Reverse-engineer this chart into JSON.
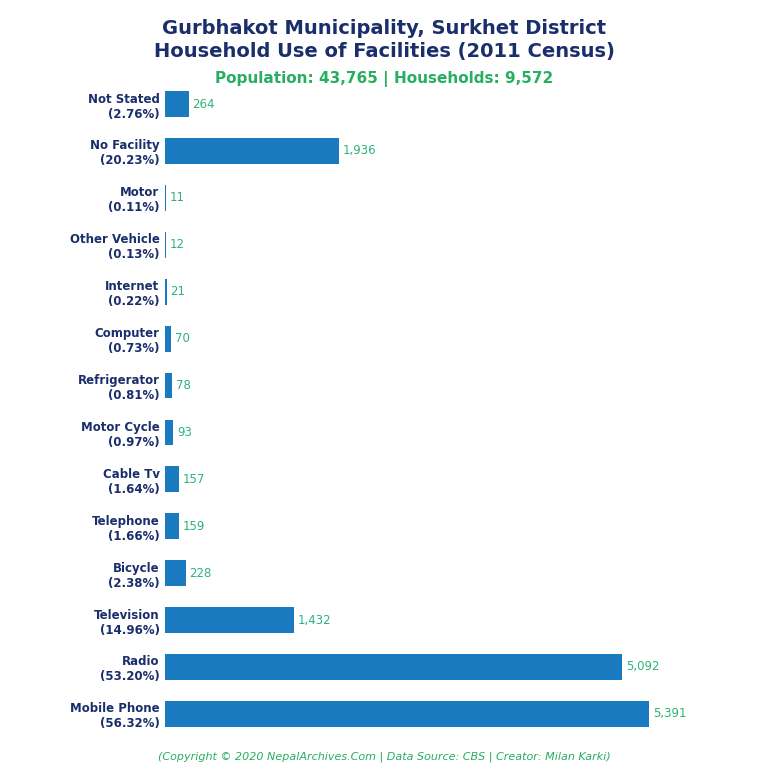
{
  "title_line1": "Gurbhakot Municipality, Surkhet District",
  "title_line2": "Household Use of Facilities (2011 Census)",
  "subtitle": "Population: 43,765 | Households: 9,572",
  "footer": "(Copyright © 2020 NepalArchives.Com | Data Source: CBS | Creator: Milan Karki)",
  "categories": [
    "Not Stated\n(2.76%)",
    "No Facility\n(20.23%)",
    "Motor\n(0.11%)",
    "Other Vehicle\n(0.13%)",
    "Internet\n(0.22%)",
    "Computer\n(0.73%)",
    "Refrigerator\n(0.81%)",
    "Motor Cycle\n(0.97%)",
    "Cable Tv\n(1.64%)",
    "Telephone\n(1.66%)",
    "Bicycle\n(2.38%)",
    "Television\n(14.96%)",
    "Radio\n(53.20%)",
    "Mobile Phone\n(56.32%)"
  ],
  "values": [
    264,
    1936,
    11,
    12,
    21,
    70,
    78,
    93,
    157,
    159,
    228,
    1432,
    5092,
    5391
  ],
  "bar_color": "#1a7abf",
  "value_color": "#2db37a",
  "title_color": "#1a2e6b",
  "subtitle_color": "#27ae60",
  "footer_color": "#27ae60",
  "background_color": "#ffffff",
  "xlim": [
    0,
    6200
  ],
  "figsize": [
    7.68,
    7.68
  ],
  "dpi": 100,
  "title_fontsize": 14,
  "subtitle_fontsize": 11,
  "label_fontsize": 8.5,
  "value_fontsize": 8.5,
  "footer_fontsize": 8
}
